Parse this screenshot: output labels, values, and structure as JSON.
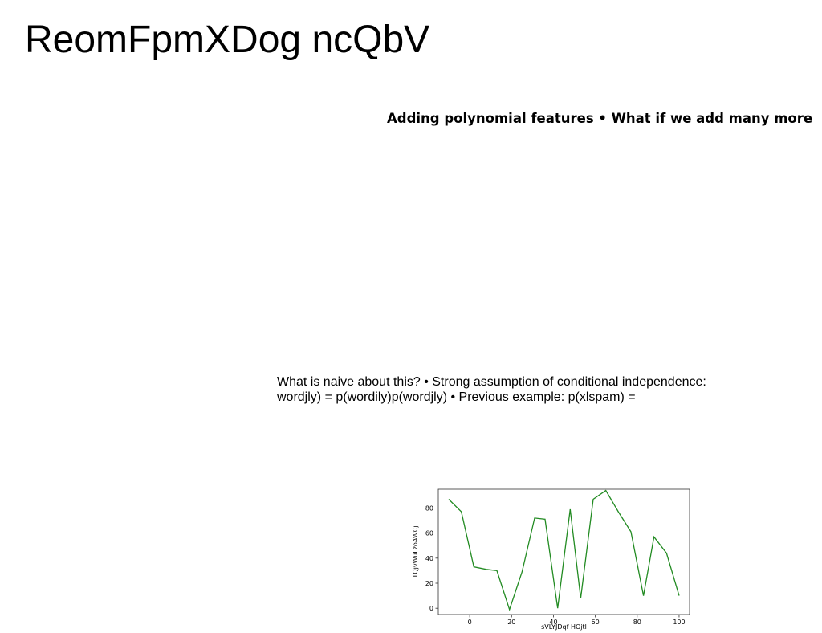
{
  "slide": {
    "title": "ReomFpmXDog ncQbV",
    "subtitle": "Adding polynomial features • What if we add many more",
    "body_lines": [
      "What is naive about this? • Strong assumption of conditional independence:",
      "wordjly) = p(wordily)p(wordjly) • Previous example: p(xlspam) ="
    ]
  },
  "chart_data": {
    "type": "line",
    "xlabel": "sVLYJDqf HOjtl",
    "ylabel": "TQjvWuLzoAWCj",
    "xlim": [
      -15,
      105
    ],
    "ylim": [
      -5,
      95
    ],
    "x_ticks": [
      0,
      20,
      40,
      60,
      80,
      100
    ],
    "y_ticks": [
      0,
      20,
      40,
      60,
      80
    ],
    "grid": false,
    "series": [
      {
        "color": "#228b22",
        "x": [
          -10,
          -4,
          2,
          8,
          13,
          19,
          25,
          31,
          36,
          42,
          48,
          53,
          59,
          65,
          71,
          77,
          83,
          88,
          94,
          100
        ],
        "y": [
          87,
          77,
          33,
          31,
          30,
          -1,
          29,
          72,
          71,
          0,
          79,
          8,
          87,
          94,
          77,
          61,
          10,
          57,
          44,
          10
        ]
      }
    ]
  }
}
